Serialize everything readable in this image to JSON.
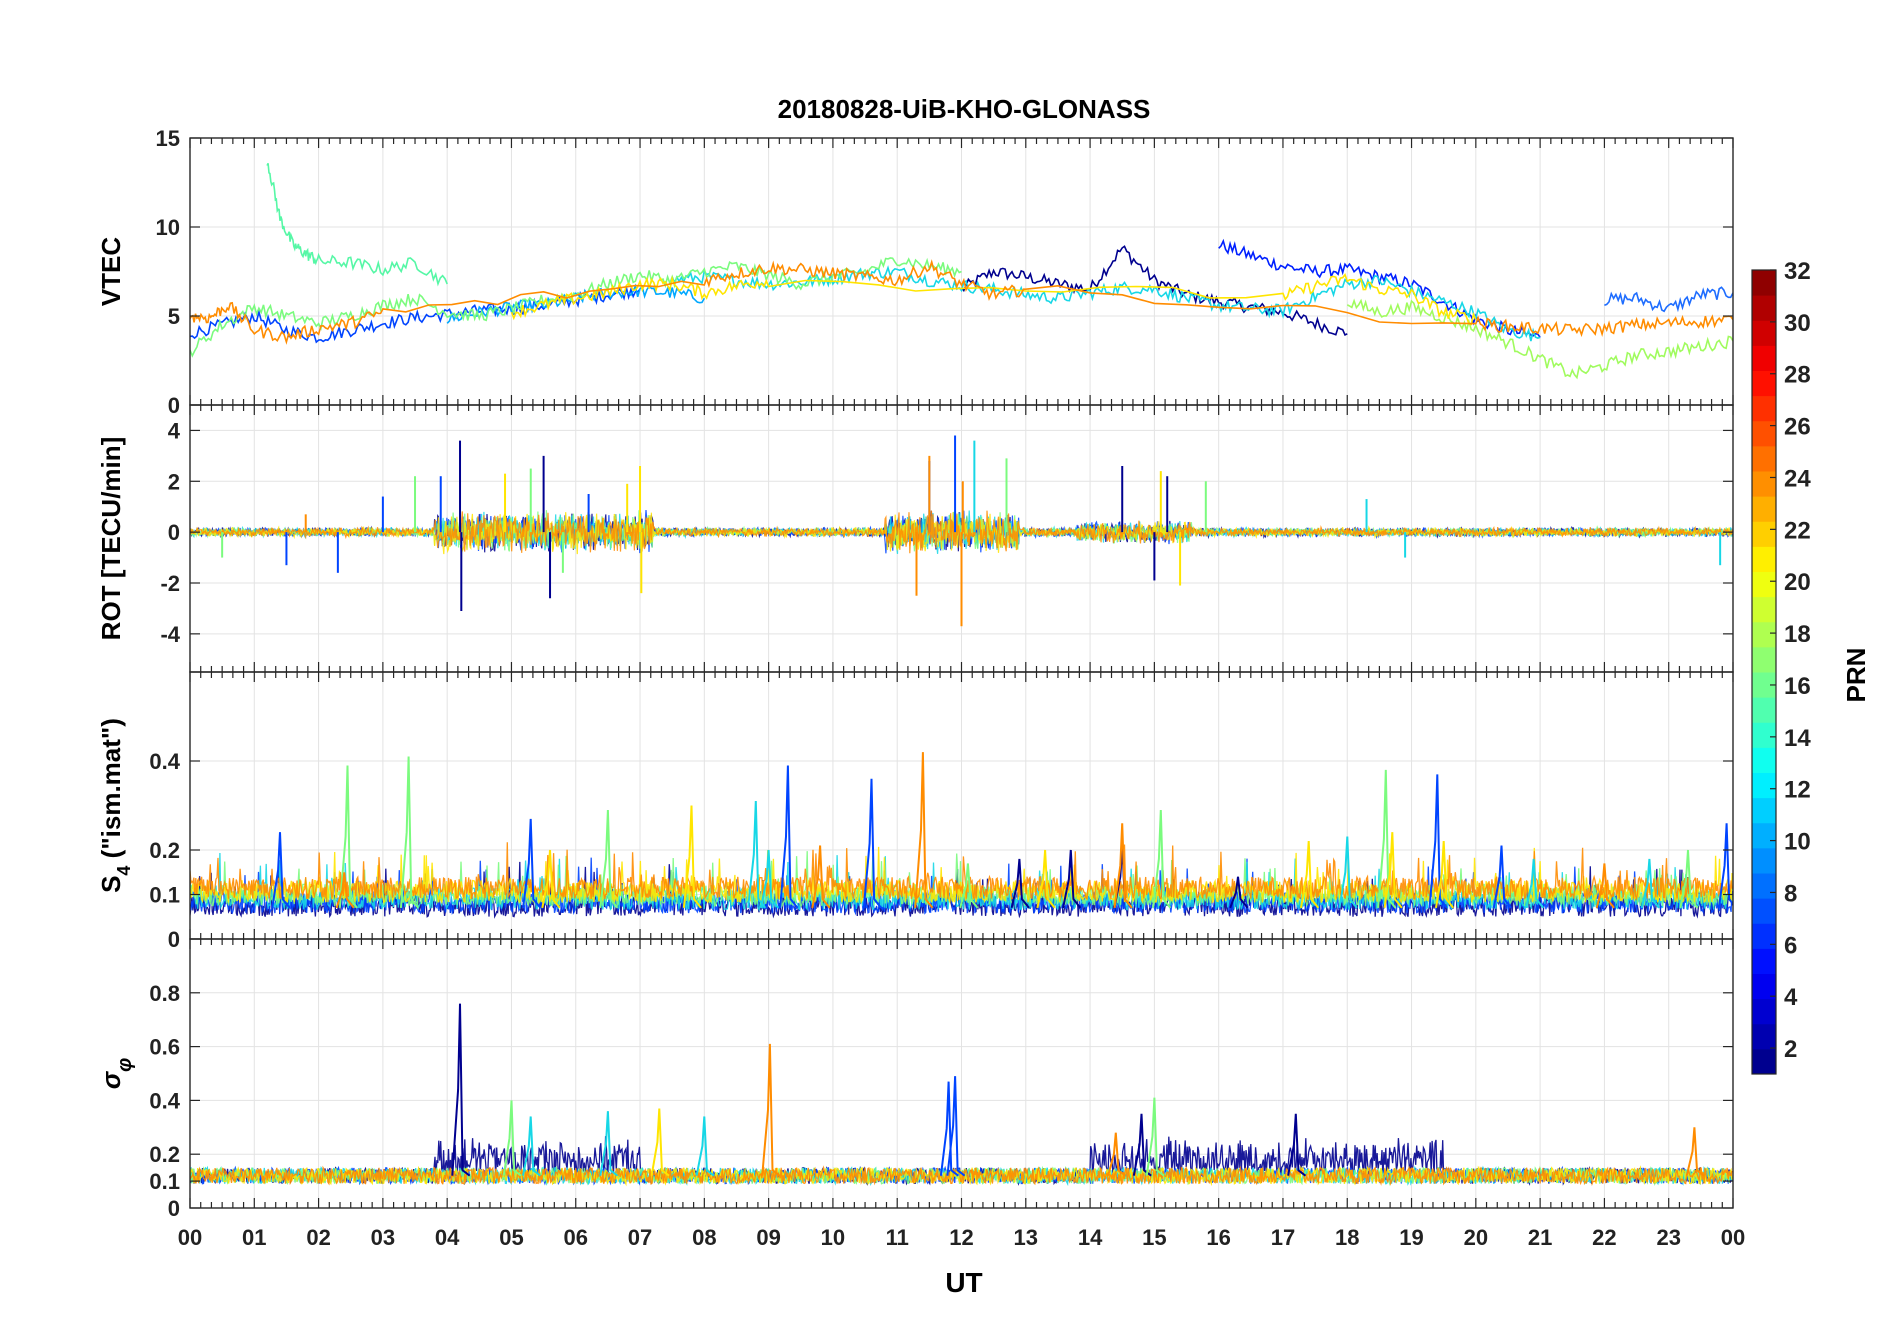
{
  "chart_data": [
    {
      "type": "line",
      "panel": "vtec",
      "title": "20180828-UiB-KHO-GLONASS",
      "ylabel": "VTEC",
      "ylim": [
        0,
        15
      ],
      "yticks": [
        0,
        5,
        10,
        15
      ],
      "xlim": [
        0,
        24
      ],
      "series": [
        {
          "name": "PRN 1",
          "color": "#00008f",
          "x": [
            12.0,
            12.5,
            13.0,
            13.5,
            14.0,
            14.5,
            15.0,
            15.5,
            16.0,
            16.5,
            17.0,
            17.5,
            18.0
          ],
          "y": [
            6.5,
            7.5,
            7.2,
            6.8,
            6.5,
            8.8,
            7.0,
            6.2,
            5.8,
            5.5,
            5.2,
            4.6,
            4.0
          ]
        },
        {
          "name": "PRN 4",
          "color": "#0020ff",
          "x": [
            16.0,
            16.5,
            17.0,
            17.5,
            18.0,
            18.5,
            19.0,
            19.5,
            20.0,
            20.5,
            21.0
          ],
          "y": [
            9.0,
            8.4,
            7.8,
            7.5,
            7.6,
            7.2,
            6.8,
            5.8,
            4.8,
            4.2,
            3.8
          ]
        },
        {
          "name": "PRN 5",
          "color": "#0044ff",
          "x": [
            0.0,
            0.5,
            1.0,
            1.5,
            2.0,
            2.5,
            3.0,
            3.5,
            4.0,
            4.5,
            5.0,
            5.5,
            6.0,
            6.5,
            7.0
          ],
          "y": [
            4.0,
            4.5,
            5.0,
            4.2,
            3.8,
            4.2,
            4.6,
            4.9,
            5.1,
            5.3,
            5.4,
            5.6,
            5.9,
            6.2,
            6.5
          ]
        },
        {
          "name": "PRN 7",
          "color": "#1e6dff",
          "x": [
            22.0,
            22.5,
            23.0,
            23.5,
            24.0
          ],
          "y": [
            5.9,
            6.0,
            5.4,
            6.2,
            6.3
          ]
        },
        {
          "name": "PRN 10",
          "color": "#00a8ff",
          "x": [
            4.0,
            4.5,
            5.0,
            5.5,
            6.0,
            6.5,
            7.0,
            7.5,
            8.0
          ],
          "y": [
            4.8,
            5.2,
            5.5,
            5.6,
            6.0,
            6.3,
            6.4,
            6.3,
            6.0
          ]
        },
        {
          "name": "PRN 12",
          "color": "#17d7e6",
          "x": [
            7.5,
            8.0,
            8.5,
            9.0,
            9.5,
            10.0,
            10.5,
            11.0,
            11.5,
            12.0,
            12.5,
            13.0,
            13.5,
            14.0,
            14.5,
            15.0,
            15.5,
            16.0,
            16.5,
            17.0,
            17.5,
            18.0,
            18.5,
            19.0,
            19.5,
            20.0,
            20.5,
            21.0
          ],
          "y": [
            7.0,
            7.2,
            7.0,
            6.8,
            6.9,
            7.1,
            7.4,
            7.5,
            7.0,
            6.7,
            6.5,
            6.2,
            6.0,
            6.3,
            6.6,
            6.5,
            6.0,
            5.6,
            5.4,
            5.3,
            6.1,
            6.8,
            7.0,
            6.4,
            5.8,
            5.2,
            4.2,
            3.8
          ]
        },
        {
          "name": "PRN 15",
          "color": "#56f7a6",
          "x": [
            1.2,
            1.4,
            1.6,
            1.8,
            2.0,
            2.5,
            3.0,
            3.5,
            4.0
          ],
          "y": [
            13.8,
            10.5,
            9.0,
            8.5,
            8.1,
            8.0,
            7.6,
            8.0,
            6.8
          ]
        },
        {
          "name": "PRN 16",
          "color": "#7bfb7e",
          "x": [
            0.0,
            0.5,
            1.0,
            1.5,
            2.0,
            2.5,
            3.0,
            3.5,
            4.0,
            4.5,
            5.0,
            5.5,
            6.0,
            6.5,
            7.0,
            7.5,
            8.0,
            8.5,
            9.0,
            9.5,
            10.0,
            10.5,
            11.0,
            11.5,
            12.0
          ],
          "y": [
            3.0,
            4.5,
            5.5,
            5.0,
            4.6,
            5.0,
            5.6,
            6.0,
            5.2,
            5.0,
            5.4,
            5.9,
            6.2,
            6.8,
            7.3,
            7.0,
            7.5,
            7.8,
            7.3,
            6.8,
            7.2,
            7.5,
            8.2,
            7.8,
            7.5
          ]
        },
        {
          "name": "PRN 17",
          "color": "#a0fb5e",
          "x": [
            18.0,
            18.5,
            19.0,
            19.5,
            20.0,
            20.5,
            21.0,
            21.5,
            22.0,
            22.5,
            23.0,
            23.5,
            24.0
          ],
          "y": [
            5.8,
            5.2,
            5.5,
            4.9,
            4.3,
            3.5,
            2.6,
            1.7,
            2.2,
            2.8,
            3.0,
            3.3,
            3.6
          ]
        },
        {
          "name": "PRN 20",
          "color": "#ffe500",
          "x": [
            5.0,
            5.5,
            6.0,
            6.5,
            7.0,
            7.5,
            8.0,
            8.5,
            9.0,
            17.0,
            17.5,
            18.0,
            18.5,
            19.0,
            19.5,
            20.0
          ],
          "y": [
            5.2,
            5.6,
            6.0,
            6.3,
            6.8,
            6.8,
            6.3,
            6.7,
            7.0,
            6.1,
            6.7,
            7.1,
            6.5,
            6.2,
            5.2,
            4.8
          ]
        },
        {
          "name": "PRN 23",
          "color": "#ff8c00",
          "x": [
            0.0,
            0.3,
            0.6,
            1.0,
            1.5,
            2.0,
            2.5,
            3.0,
            8.0,
            8.5,
            9.0,
            9.5,
            10.0,
            10.5,
            11.0,
            11.5,
            12.0,
            12.5,
            13.0,
            20.0,
            20.5,
            21.0,
            21.5,
            22.0,
            22.5,
            23.0,
            23.5,
            24.0
          ],
          "y": [
            5.0,
            4.9,
            5.6,
            4.2,
            3.8,
            4.3,
            4.6,
            5.2,
            7.0,
            7.4,
            7.7,
            7.6,
            7.4,
            7.2,
            7.0,
            7.8,
            6.8,
            6.2,
            6.5,
            4.6,
            4.4,
            4.3,
            4.2,
            4.3,
            4.5,
            4.6,
            4.7,
            4.8
          ]
        }
      ]
    },
    {
      "type": "line",
      "panel": "rot",
      "ylabel": "ROT [TECU/min]",
      "ylim": [
        -5.5,
        5
      ],
      "yticks": [
        -4,
        -2,
        0,
        2,
        4
      ],
      "xlim": [
        0,
        24
      ],
      "spikes": [
        {
          "prn": 1,
          "color": "#00008f",
          "x": [
            4.2,
            4.22,
            5.5,
            5.6,
            14.5,
            15.0,
            15.2
          ],
          "y": [
            3.6,
            -3.1,
            3.0,
            -2.6,
            2.6,
            -1.9,
            2.2
          ]
        },
        {
          "prn": 5,
          "color": "#0044ff",
          "x": [
            1.5,
            2.3,
            3.0,
            3.9,
            6.2,
            11.5,
            11.9
          ],
          "y": [
            -1.3,
            -1.6,
            1.4,
            2.2,
            1.5,
            2.8,
            3.8
          ]
        },
        {
          "prn": 12,
          "color": "#17d7e6",
          "x": [
            12.2,
            18.3,
            18.9,
            23.8
          ],
          "y": [
            3.6,
            1.3,
            -1.0,
            -1.3
          ]
        },
        {
          "prn": 16,
          "color": "#7bfb7e",
          "x": [
            0.5,
            3.5,
            5.3,
            5.8,
            12.7,
            15.8
          ],
          "y": [
            -1.0,
            2.2,
            2.5,
            -1.6,
            2.9,
            2.0
          ]
        },
        {
          "prn": 20,
          "color": "#ffe500",
          "x": [
            4.9,
            6.8,
            7.0,
            7.02,
            15.1,
            15.4
          ],
          "y": [
            2.3,
            1.9,
            2.6,
            -2.4,
            2.4,
            -2.1
          ]
        },
        {
          "prn": 23,
          "color": "#ff8c00",
          "x": [
            1.8,
            11.3,
            11.5,
            12.0,
            12.02
          ],
          "y": [
            0.7,
            -2.5,
            3.0,
            -3.7,
            2.0
          ]
        }
      ]
    },
    {
      "type": "line",
      "panel": "s4",
      "ylabel": "S4 (\"ism.mat\")",
      "ylim": [
        0,
        0.6
      ],
      "yticks": [
        0,
        0.1,
        0.2,
        0.4
      ],
      "xlim": [
        0,
        24
      ],
      "peaks": [
        {
          "prn": 5,
          "color": "#0044ff",
          "x": [
            1.4,
            5.3,
            9.3,
            10.6,
            19.4,
            20.4,
            23.9
          ],
          "y": [
            0.24,
            0.27,
            0.39,
            0.36,
            0.37,
            0.21,
            0.26
          ]
        },
        {
          "prn": 1,
          "color": "#00008f",
          "x": [
            12.9,
            13.7,
            14.5,
            16.3
          ],
          "y": [
            0.18,
            0.2,
            0.21,
            0.14
          ]
        },
        {
          "prn": 12,
          "color": "#17d7e6",
          "x": [
            8.8,
            9.0,
            18.0,
            20.9,
            22.7
          ],
          "y": [
            0.31,
            0.2,
            0.23,
            0.18,
            0.18
          ]
        },
        {
          "prn": 16,
          "color": "#7bfb7e",
          "x": [
            2.45,
            3.4,
            6.5,
            12.1,
            15.1,
            18.6,
            23.3
          ],
          "y": [
            0.39,
            0.41,
            0.29,
            0.17,
            0.29,
            0.38,
            0.2
          ]
        },
        {
          "prn": 20,
          "color": "#ffe500",
          "x": [
            5.6,
            7.8,
            13.3,
            17.4,
            18.7,
            19.5
          ],
          "y": [
            0.2,
            0.3,
            0.2,
            0.22,
            0.24,
            0.22
          ]
        },
        {
          "prn": 23,
          "color": "#ff8c00",
          "x": [
            2.4,
            9.8,
            11.4,
            14.5,
            22.0
          ],
          "y": [
            0.15,
            0.21,
            0.42,
            0.26,
            0.17
          ]
        }
      ]
    },
    {
      "type": "line",
      "panel": "sigma_phi",
      "ylabel": "σ_φ",
      "ylim": [
        0,
        1.0
      ],
      "yticks": [
        0,
        0.1,
        0.2,
        0.4,
        0.6,
        0.8
      ],
      "xlim": [
        0,
        24
      ],
      "peaks": [
        {
          "prn": 1,
          "color": "#00008f",
          "x": [
            4.2,
            14.8,
            17.2
          ],
          "y": [
            0.76,
            0.35,
            0.35
          ]
        },
        {
          "prn": 5,
          "color": "#0044ff",
          "x": [
            11.8,
            11.9
          ],
          "y": [
            0.47,
            0.49
          ]
        },
        {
          "prn": 12,
          "color": "#17d7e6",
          "x": [
            5.3,
            6.5,
            8.0
          ],
          "y": [
            0.34,
            0.36,
            0.34
          ]
        },
        {
          "prn": 16,
          "color": "#7bfb7e",
          "x": [
            5.0,
            15.0
          ],
          "y": [
            0.4,
            0.41
          ]
        },
        {
          "prn": 20,
          "color": "#ffe500",
          "x": [
            7.3
          ],
          "y": [
            0.37
          ]
        },
        {
          "prn": 23,
          "color": "#ff8c00",
          "x": [
            9.02,
            14.4,
            23.4
          ],
          "y": [
            0.61,
            0.28,
            0.3
          ]
        }
      ]
    }
  ],
  "x_axis": {
    "label": "UT",
    "ticks": [
      "00",
      "01",
      "02",
      "03",
      "04",
      "05",
      "06",
      "07",
      "08",
      "09",
      "10",
      "11",
      "12",
      "13",
      "14",
      "15",
      "16",
      "17",
      "18",
      "19",
      "20",
      "21",
      "22",
      "23",
      "00"
    ]
  },
  "colorbar": {
    "label": "PRN",
    "range": [
      1,
      32
    ],
    "ticks": [
      2,
      4,
      6,
      8,
      10,
      12,
      14,
      16,
      18,
      20,
      22,
      24,
      26,
      28,
      30,
      32
    ],
    "colors": [
      "#00008f",
      "#0000b0",
      "#0000d0",
      "#0000f0",
      "#0010ff",
      "#0030ff",
      "#0050ff",
      "#0070ff",
      "#008fff",
      "#00afff",
      "#00cfff",
      "#00efff",
      "#10ffef",
      "#30ffcf",
      "#50ffaf",
      "#70ff8f",
      "#8fff70",
      "#afff50",
      "#cfff30",
      "#efff10",
      "#ffef00",
      "#ffcf00",
      "#ffaf00",
      "#ff8f00",
      "#ff7000",
      "#ff5000",
      "#ff3000",
      "#ff1000",
      "#f00000",
      "#d00000",
      "#b00000",
      "#8f0000"
    ]
  }
}
